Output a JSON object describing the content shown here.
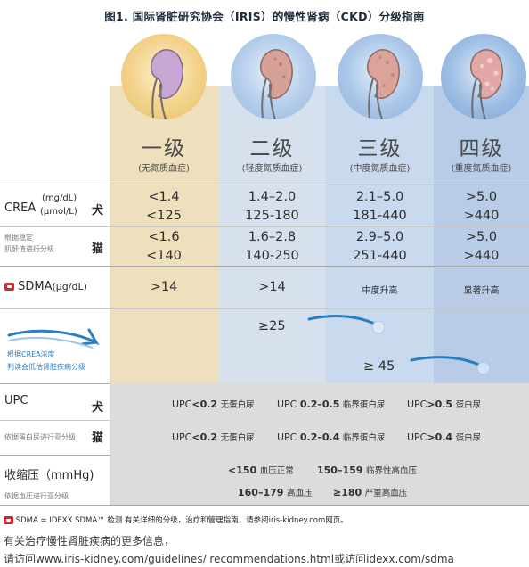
{
  "title": "图1. 国际肾脏研究协会（IRIS）的慢性肾病（CKD）分级指南",
  "stages": [
    {
      "name": "一级",
      "sub": "(无氮质血症)",
      "kidney_color": "#c9a9d6"
    },
    {
      "name": "二级",
      "sub": "(轻度氮质血症)",
      "kidney_color": "#d9a39b"
    },
    {
      "name": "三级",
      "sub": "(中度氮质血症)",
      "kidney_color": "#dba59e"
    },
    {
      "name": "四级",
      "sub": "(重度氮质血症)",
      "kidney_color": "#e0a5a3"
    }
  ],
  "crea": {
    "label": "CREA",
    "units": [
      "(mg/dL)",
      "(μmol/L)"
    ],
    "note_line1": "根据稳定",
    "note_line2": "肌酐值进行分级",
    "dog_label": "犬",
    "cat_label": "猫",
    "dog": [
      [
        "<1.4",
        "<125"
      ],
      [
        "1.4–2.0",
        "125-180"
      ],
      [
        "2.1–5.0",
        "181-440"
      ],
      [
        ">5.0",
        ">440"
      ]
    ],
    "cat": [
      [
        "<1.6",
        "<140"
      ],
      [
        "1.6–2.8",
        "140-250"
      ],
      [
        "2.9–5.0",
        "251-440"
      ],
      [
        ">5.0",
        ">440"
      ]
    ]
  },
  "sdma": {
    "label": "SDMA",
    "unit": "(μg/dL)",
    "values": [
      ">14",
      ">14",
      "中度升高",
      "显著升高"
    ],
    "threshold_1": "≥25",
    "threshold_2": "≥ 45",
    "note_line1": "根据CREA浓度",
    "note_line2": "判读会低估肾脏疾病分级"
  },
  "upc": {
    "label": "UPC",
    "note": "依据蛋白尿进行亚分级",
    "dog_label": "犬",
    "cat_label": "猫",
    "dog": [
      {
        "prefix": "UPC",
        "value": "<0.2",
        "desc": "无蛋白尿"
      },
      {
        "prefix": "UPC",
        "value": "0.2–0.5",
        "desc": "临界蛋白尿"
      },
      {
        "prefix": "UPC",
        "value": ">0.5",
        "desc": "蛋白尿"
      }
    ],
    "cat": [
      {
        "prefix": "UPC",
        "value": "<0.2",
        "desc": "无蛋白尿"
      },
      {
        "prefix": "UPC",
        "value": "0.2–0.4",
        "desc": "临界蛋白尿"
      },
      {
        "prefix": "UPC",
        "value": ">0.4",
        "desc": "蛋白尿"
      }
    ]
  },
  "bp": {
    "label": "收缩压（mmHg)",
    "note": "依据血压进行亚分级",
    "items": [
      {
        "value": "<150",
        "desc": "血压正常"
      },
      {
        "value": "150–159",
        "desc": "临界性高血压"
      },
      {
        "value": "160–179",
        "desc": "高血压"
      },
      {
        "value": "≥180",
        "desc": "严重高血压"
      }
    ]
  },
  "footnote": "SDMA = IDEXX SDMA™ 检测 有关详细的分级，治疗和管理指南，请参阅iris-kidney.com网页。",
  "more_info_line1": "有关治疗慢性肾脏疾病的更多信息，",
  "more_info_line2": "请访问www.iris-kidney.com/guidelines/ recommendations.html或访问idexx.com/sdma",
  "colors": {
    "stage1": "#eedfbd",
    "stage2": "#d7e1ee",
    "stage3": "#c9d9ee",
    "stage4": "#b8cce7",
    "arrow": "#2a7fc2",
    "sdma_icon": "#d8262e",
    "grey_band": "#dcdcdc"
  }
}
